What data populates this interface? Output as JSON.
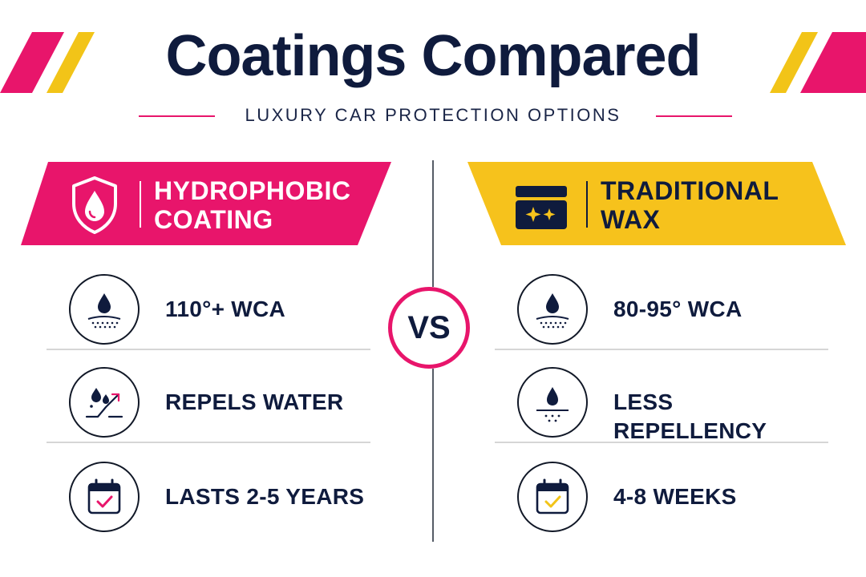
{
  "header": {
    "title": "Coatings Compared",
    "subtitle": "LUXURY CAR PROTECTION OPTIONS"
  },
  "colors": {
    "pink": "#e8156b",
    "gold": "#f2c418",
    "navy": "#0f1b3d"
  },
  "vs_label": "VS",
  "left": {
    "banner_title": "HYDROPHOBIC\nCOATING",
    "banner_icon": "shield-drop-icon",
    "rows": [
      {
        "icon": "water-drop-surface-icon",
        "text": "110°+ WCA"
      },
      {
        "icon": "water-repel-arrow-icon",
        "text": "REPELS WATER"
      },
      {
        "icon": "calendar-check-icon",
        "text": "LASTS 2-5 YEARS"
      }
    ]
  },
  "right": {
    "banner_title": "TRADITIONAL\nWAX",
    "banner_icon": "wax-jar-icon",
    "rows": [
      {
        "icon": "water-drop-surface-icon",
        "text": "80-95° WCA"
      },
      {
        "icon": "water-drop-absorb-icon",
        "text": "LESS REPELLENCY"
      },
      {
        "icon": "calendar-check-icon",
        "text": "4-8 WEEKS"
      }
    ]
  }
}
